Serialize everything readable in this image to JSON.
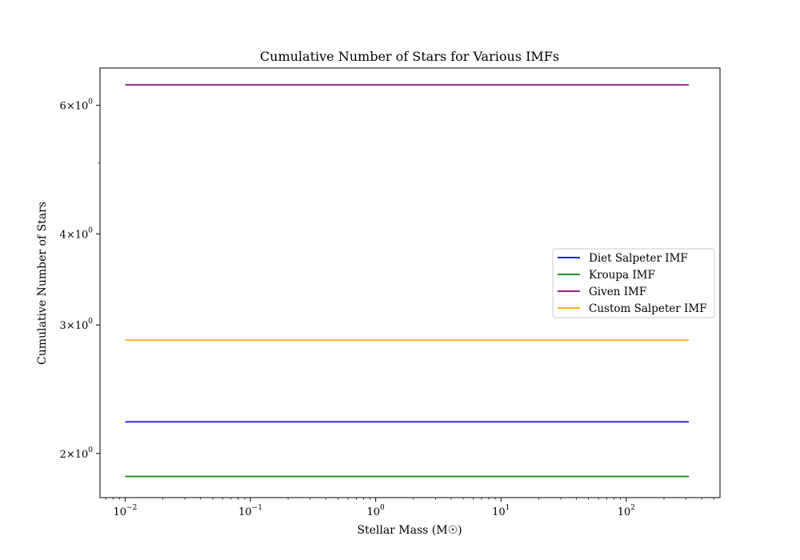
{
  "chart_data": {
    "type": "line",
    "title": "Cumulative Number of Stars for Various IMFs",
    "xlabel": "Stellar Mass (M☉)",
    "ylabel": "Cumulative Number of Stars",
    "xscale": "log",
    "yscale": "log",
    "xlim": [
      0.0063,
      560
    ],
    "ylim": [
      1.74,
      6.75
    ],
    "x_ticks": [
      {
        "value": 0.01,
        "base": "10",
        "exp": "−2"
      },
      {
        "value": 0.1,
        "base": "10",
        "exp": "−1"
      },
      {
        "value": 1,
        "base": "10",
        "exp": "0"
      },
      {
        "value": 10,
        "base": "10",
        "exp": "1"
      },
      {
        "value": 100,
        "base": "10",
        "exp": "2"
      }
    ],
    "y_ticks": [
      {
        "value": 2,
        "mant": "2",
        "exp": "0"
      },
      {
        "value": 3,
        "mant": "3",
        "exp": "0"
      },
      {
        "value": 4,
        "mant": "4",
        "exp": "0"
      },
      {
        "value": 6,
        "mant": "6",
        "exp": "0"
      }
    ],
    "y_minor_ticks": [
      5
    ],
    "grid": false,
    "legend_position": "center-right",
    "series": [
      {
        "name": "Diet Salpeter IMF",
        "color": "#0000ff",
        "x": [
          0.01,
          316
        ],
        "y": [
          2.21,
          2.21
        ]
      },
      {
        "name": "Kroupa IMF",
        "color": "#008000",
        "x": [
          0.01,
          316
        ],
        "y": [
          1.86,
          1.86
        ]
      },
      {
        "name": "Given IMF",
        "color": "#800080",
        "x": [
          0.01,
          316
        ],
        "y": [
          6.4,
          6.4
        ]
      },
      {
        "name": "Custom Salpeter IMF",
        "color": "#ffa500",
        "x": [
          0.01,
          316
        ],
        "y": [
          2.86,
          2.86
        ]
      }
    ]
  }
}
